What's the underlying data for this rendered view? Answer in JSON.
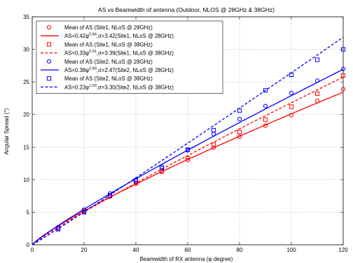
{
  "chart_data": {
    "type": "line",
    "title": "AS vs Beamwidth of antenna (Outdoor, NLOS @ 28GHz & 38GHz)",
    "xlabel": "Beamwidth of RX antenna (φ degree)",
    "ylabel": "Angular Spread (°)",
    "xlim": [
      0,
      120
    ],
    "ylim": [
      0,
      35
    ],
    "xticks": [
      0,
      20,
      40,
      60,
      80,
      100,
      120
    ],
    "yticks": [
      0,
      5,
      10,
      15,
      20,
      25,
      30,
      35
    ],
    "grid": true,
    "legend_position": "top-left",
    "markers": [
      {
        "name": "Mean of AS (Site1, NLoS @ 28GHz)",
        "marker": "circle",
        "color": "#ff0000",
        "x": [
          10,
          20,
          30,
          40,
          50,
          60,
          70,
          80,
          90,
          100,
          110,
          120
        ],
        "y": [
          2.5,
          5.1,
          7.4,
          9.4,
          11.2,
          13.0,
          14.9,
          16.6,
          18.3,
          19.9,
          22.1,
          23.9
        ]
      },
      {
        "name": "Mean of AS (Site1, NLoS @ 38GHz)",
        "marker": "square",
        "color": "#ff0000",
        "x": [
          10,
          20,
          30,
          40,
          50,
          60,
          70,
          80,
          90,
          100,
          110,
          120
        ],
        "y": [
          2.5,
          5.2,
          7.5,
          9.5,
          11.3,
          13.3,
          15.4,
          17.3,
          19.2,
          21.2,
          23.2,
          26.0
        ]
      },
      {
        "name": "Mean of AS (Site2, NLoS @ 28GHz)",
        "marker": "circle",
        "color": "#0000ff",
        "x": [
          10,
          20,
          30,
          40,
          50,
          60,
          70,
          80,
          90,
          100,
          110,
          120
        ],
        "y": [
          2.7,
          5.4,
          7.9,
          10.0,
          12.0,
          14.5,
          17.0,
          19.3,
          21.3,
          23.3,
          25.2,
          27.0
        ]
      },
      {
        "name": "Mean of AS (Site2, NLoS @ 38GHz)",
        "marker": "square",
        "color": "#0000ff",
        "x": [
          10,
          20,
          30,
          40,
          50,
          60,
          70,
          80,
          90,
          100,
          110,
          120
        ],
        "y": [
          2.4,
          5.0,
          7.6,
          9.8,
          11.8,
          14.6,
          17.6,
          20.6,
          23.7,
          26.1,
          28.4,
          30.0
        ]
      }
    ],
    "fits": [
      {
        "name": "AS=0.42φ^0.84,σ=3.42(Site1, NLoS @ 28GHz)",
        "prefix": "AS=0.42φ",
        "exponent": "0.84",
        "suffix": ",σ=3.42(Site1, NLoS @ 28GHz)",
        "coef": 0.42,
        "power": 0.84,
        "color": "#ff0000",
        "dash": "solid"
      },
      {
        "name": "AS=0.33φ^0.91,σ=3.39(Site1, NLoS @ 38GHz)",
        "prefix": "AS=0.33φ",
        "exponent": "0.91",
        "suffix": ",σ=3.39(Site1, NLoS @ 38GHz)",
        "coef": 0.33,
        "power": 0.91,
        "color": "#ff0000",
        "dash": "dashed"
      },
      {
        "name": "AS=0.38φ^0.89,σ=2.47(Site2, NLoS @ 28GHz)",
        "prefix": "AS=0.38φ",
        "exponent": "0.89",
        "suffix": ",σ=2.47(Site2, NLoS @ 28GHz)",
        "coef": 0.38,
        "power": 0.89,
        "color": "#0000ff",
        "dash": "solid"
      },
      {
        "name": "AS=0.23φ^1.03,σ=3.30(Site2, NLoS @ 38GHz)",
        "prefix": "AS=0.23φ",
        "exponent": "1.03",
        "suffix": ",σ=3.30(Site2, NLoS @ 38GHz)",
        "coef": 0.23,
        "power": 1.03,
        "color": "#0000ff",
        "dash": "dashed"
      }
    ],
    "legend_order": [
      {
        "kind": "marker",
        "index": 0
      },
      {
        "kind": "fit",
        "index": 0
      },
      {
        "kind": "marker",
        "index": 1
      },
      {
        "kind": "fit",
        "index": 1
      },
      {
        "kind": "marker",
        "index": 2
      },
      {
        "kind": "fit",
        "index": 2
      },
      {
        "kind": "marker",
        "index": 3
      },
      {
        "kind": "fit",
        "index": 3
      }
    ]
  }
}
